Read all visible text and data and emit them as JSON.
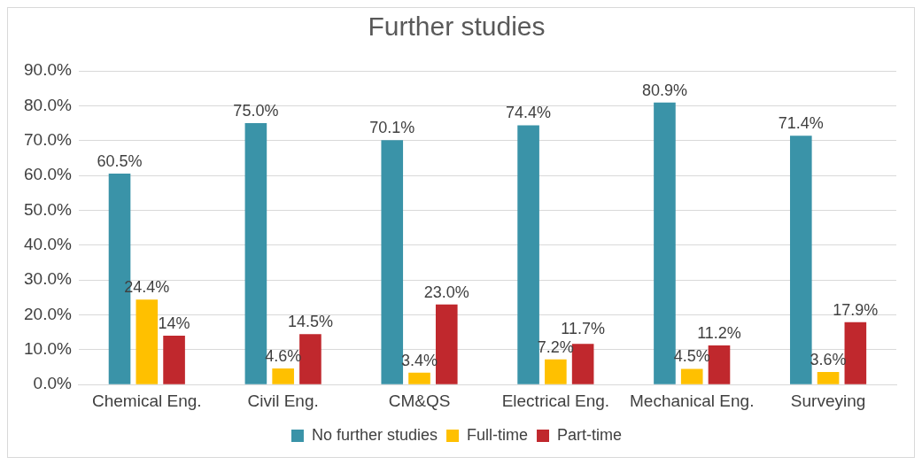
{
  "chart_data": {
    "type": "bar",
    "title": "Further studies",
    "categories": [
      "Chemical Eng.",
      "Civil Eng.",
      "CM&QS",
      "Electrical Eng.",
      "Mechanical Eng.",
      "Surveying"
    ],
    "series": [
      {
        "name": "No further studies",
        "color": "#3a93a8",
        "values": [
          60.5,
          75.0,
          70.1,
          74.4,
          80.9,
          71.4
        ],
        "value_labels": [
          "60.5%",
          "75.0%",
          "70.1%",
          "74.4%",
          "80.9%",
          "71.4%"
        ]
      },
      {
        "name": "Full-time",
        "color": "#ffc000",
        "values": [
          24.4,
          4.6,
          3.4,
          7.2,
          4.5,
          3.6
        ],
        "value_labels": [
          "24.4%",
          "4.6%",
          "3.4%",
          "7.2%",
          "4.5%",
          "3.6%"
        ]
      },
      {
        "name": "Part-time",
        "color": "#c0282d",
        "values": [
          14,
          14.5,
          23.0,
          11.7,
          11.2,
          17.9
        ],
        "value_labels": [
          "14%",
          "14.5%",
          "23.0%",
          "11.7%",
          "11.2%",
          "17.9%"
        ]
      }
    ],
    "ylim": [
      0,
      90
    ],
    "yticks": [
      {
        "value": 0,
        "label": "0.0%"
      },
      {
        "value": 10,
        "label": "10.0%"
      },
      {
        "value": 20,
        "label": "20.0%"
      },
      {
        "value": 30,
        "label": "30.0%"
      },
      {
        "value": 40,
        "label": "40.0%"
      },
      {
        "value": 50,
        "label": "50.0%"
      },
      {
        "value": 60,
        "label": "60.0%"
      },
      {
        "value": 70,
        "label": "70.0%"
      },
      {
        "value": 80,
        "label": "80.0%"
      },
      {
        "value": 90,
        "label": "90.0%"
      }
    ],
    "grid": "y",
    "legend": "bottom"
  }
}
